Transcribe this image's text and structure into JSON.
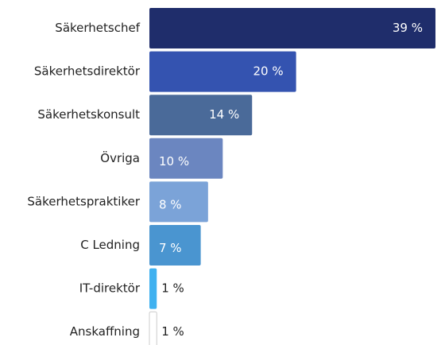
{
  "chart_data": {
    "type": "bar",
    "orientation": "horizontal",
    "categories": [
      "Säkerhetschef",
      "Säkerhetsdirektör",
      "Säkerhetskonsult",
      "Övriga",
      "Säkerhetspraktiker",
      "C Ledning",
      "IT-direktör",
      "Anskaffning"
    ],
    "values": [
      39,
      20,
      14,
      10,
      8,
      7,
      1,
      1
    ],
    "value_labels": [
      "39 %",
      "20 %",
      "14 %",
      "10 %",
      "8 %",
      "7 %",
      "1 %",
      "1 %"
    ],
    "colors": [
      "#1f2d6b",
      "#3453b0",
      "#4a6a99",
      "#6b86c0",
      "#7ba3d8",
      "#4a95d0",
      "#3fb1f0",
      "#ffffff"
    ]
  }
}
